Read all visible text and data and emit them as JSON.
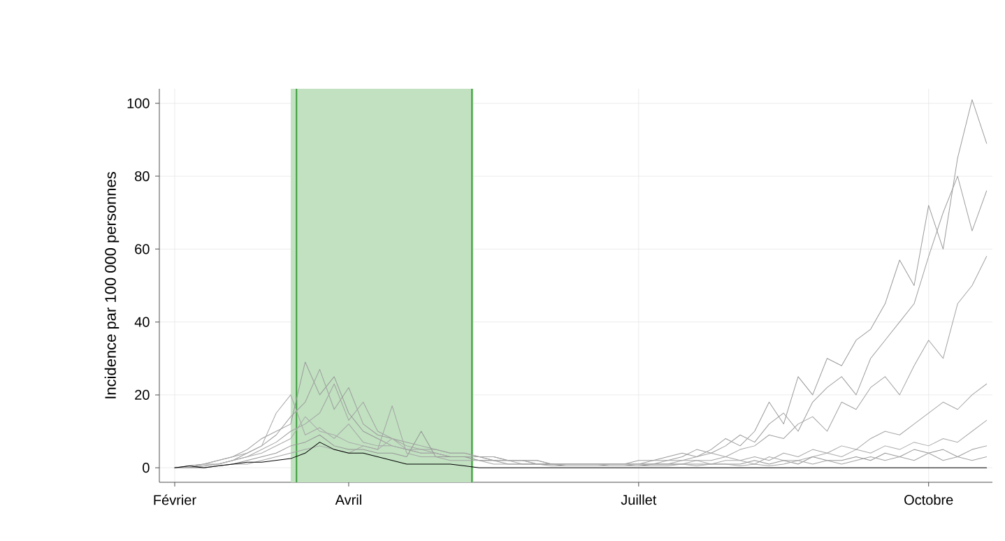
{
  "chart_data": {
    "type": "line",
    "ylabel": "Incidence par 100 000 personnes",
    "categories": [
      "Février",
      null,
      null,
      null,
      null,
      null,
      null,
      null,
      null,
      null,
      null,
      null,
      "Avril",
      null,
      null,
      null,
      null,
      null,
      null,
      null,
      null,
      null,
      null,
      null,
      null,
      null,
      null,
      null,
      null,
      null,
      null,
      null,
      "Juillet",
      null,
      null,
      null,
      null,
      null,
      null,
      null,
      null,
      null,
      null,
      null,
      null,
      null,
      null,
      null,
      null,
      null,
      null,
      null,
      "Octobre",
      null,
      null,
      null,
      null
    ],
    "series": [
      {
        "color": "#9a9a9a",
        "values": [
          0,
          0.5,
          1,
          2,
          3,
          5,
          8,
          10,
          12,
          29,
          20,
          25,
          15,
          10,
          8,
          6,
          5,
          4,
          4,
          3,
          3,
          3,
          2,
          2,
          2,
          1,
          1,
          1,
          1,
          1,
          1,
          1,
          2,
          2,
          3,
          4,
          3,
          5,
          8,
          6,
          10,
          18,
          12,
          25,
          20,
          30,
          28,
          35,
          38,
          45,
          57,
          50,
          72,
          60,
          85,
          101,
          89
        ]
      },
      {
        "color": "#9e9e9e",
        "values": [
          0,
          0,
          1,
          1,
          2,
          4,
          6,
          9,
          14,
          18,
          27,
          16,
          22,
          12,
          9,
          8,
          7,
          6,
          5,
          4,
          4,
          3,
          3,
          2,
          2,
          2,
          1,
          1,
          1,
          1,
          1,
          1,
          1,
          2,
          2,
          3,
          5,
          4,
          6,
          9,
          7,
          12,
          15,
          10,
          18,
          22,
          25,
          20,
          30,
          35,
          40,
          45,
          58,
          70,
          80,
          65,
          76
        ]
      },
      {
        "color": "#a2a2a2",
        "values": [
          0,
          0,
          0.5,
          1,
          2,
          3,
          5,
          7,
          10,
          12,
          15,
          23,
          13,
          18,
          10,
          8,
          6,
          5,
          5,
          4,
          4,
          3,
          3,
          2,
          2,
          2,
          1,
          1,
          1,
          1,
          1,
          1,
          1,
          1,
          2,
          2,
          3,
          4,
          3,
          5,
          6,
          9,
          8,
          12,
          14,
          10,
          18,
          16,
          22,
          25,
          20,
          28,
          35,
          30,
          45,
          50,
          58
        ]
      },
      {
        "color": "#a6a6a6",
        "values": [
          0,
          0.5,
          1,
          2,
          3,
          4,
          6,
          15,
          20,
          9,
          11,
          8,
          12,
          7,
          6,
          6,
          5,
          5,
          4,
          3,
          3,
          3,
          2,
          2,
          2,
          1,
          1,
          1,
          1,
          1,
          1,
          1,
          1,
          1,
          1,
          2,
          2,
          2,
          3,
          2,
          3,
          2,
          4,
          3,
          5,
          4,
          6,
          5,
          8,
          10,
          9,
          12,
          15,
          18,
          16,
          20,
          23
        ]
      },
      {
        "color": "#aaaaaa",
        "values": [
          0,
          0,
          0.5,
          1,
          2,
          3,
          4,
          6,
          8,
          14,
          10,
          9,
          7,
          6,
          5,
          8,
          5,
          4,
          4,
          3,
          3,
          2,
          2,
          2,
          1,
          1,
          1,
          1,
          1,
          1,
          0.5,
          0.5,
          1,
          1,
          1,
          1,
          2,
          1,
          2,
          2,
          1,
          3,
          2,
          2,
          3,
          4,
          3,
          5,
          4,
          6,
          5,
          7,
          6,
          8,
          7,
          10,
          13
        ]
      },
      {
        "color": "#969696",
        "values": [
          0,
          0,
          0,
          0.5,
          1,
          2,
          3,
          4,
          6,
          7,
          9,
          6,
          5,
          5,
          4,
          4,
          3,
          10,
          3,
          3,
          3,
          2,
          2,
          1,
          1,
          1,
          1,
          0.5,
          0.5,
          0.5,
          0.5,
          0.5,
          0.5,
          1,
          1,
          1,
          1,
          1,
          1,
          1,
          2,
          1,
          2,
          1,
          3,
          2,
          2,
          3,
          2,
          4,
          3,
          5,
          4,
          5,
          3,
          5,
          6
        ]
      },
      {
        "color": "#a4a4a4",
        "values": [
          0,
          0,
          0,
          0.5,
          1,
          1,
          2,
          3,
          4,
          5,
          6,
          5,
          4,
          6,
          5,
          17,
          4,
          3,
          3,
          2,
          2,
          2,
          1,
          1,
          1,
          1,
          0.5,
          0.5,
          0.5,
          0.5,
          0.5,
          0.5,
          0.5,
          0.5,
          0.5,
          1,
          0.5,
          1,
          1,
          0.5,
          1,
          0.5,
          1,
          2,
          1,
          2,
          1,
          2,
          3,
          2,
          3,
          2,
          4,
          2,
          3,
          2,
          3
        ]
      },
      {
        "color": "#000000",
        "values": [
          0,
          0.5,
          0,
          0.5,
          1,
          1.5,
          1.5,
          2,
          2.5,
          4,
          7,
          5,
          4,
          4,
          3,
          2,
          1,
          1,
          1,
          1,
          0.5,
          0,
          0,
          0,
          0,
          0,
          0,
          0,
          0,
          0,
          0,
          0,
          0,
          0,
          0,
          0,
          0,
          0,
          0,
          0,
          0,
          0,
          0,
          0,
          0,
          0,
          0,
          0,
          0,
          0,
          0,
          0,
          0,
          0,
          0,
          0,
          0
        ]
      }
    ],
    "ylim": [
      -4,
      104
    ],
    "yticks": [
      0,
      20,
      40,
      60,
      80,
      100
    ],
    "grid": true
  }
}
